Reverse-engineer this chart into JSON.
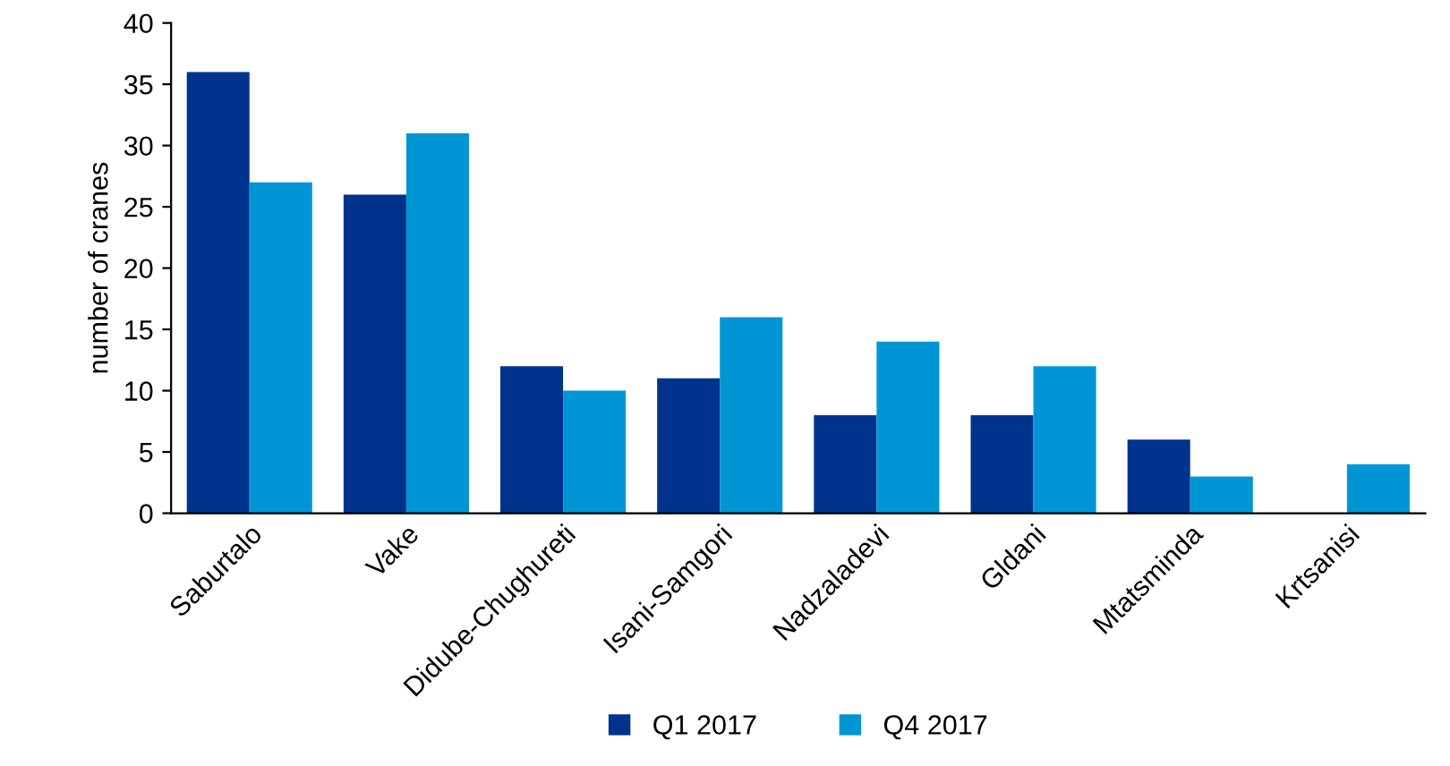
{
  "chart_data": {
    "type": "bar",
    "ylabel": "number of cranes",
    "categories": [
      "Saburtalo",
      "Vake",
      "Didube-Chughureti",
      "Isani-Samgori",
      "Nadzaladevi",
      "Gldani",
      "Mtatsminda",
      "Krtsanisi"
    ],
    "series": [
      {
        "name": "Q1 2017",
        "color": "#00338d",
        "values": [
          36,
          26,
          12,
          11,
          8,
          8,
          6,
          0
        ]
      },
      {
        "name": "Q4 2017",
        "color": "#0096d6",
        "values": [
          27,
          31,
          10,
          16,
          14,
          12,
          3,
          4
        ]
      }
    ],
    "ylim": [
      0,
      40
    ],
    "yticks": [
      0,
      5,
      10,
      15,
      20,
      25,
      30,
      35,
      40
    ],
    "grid": false,
    "legend": "bottom"
  }
}
